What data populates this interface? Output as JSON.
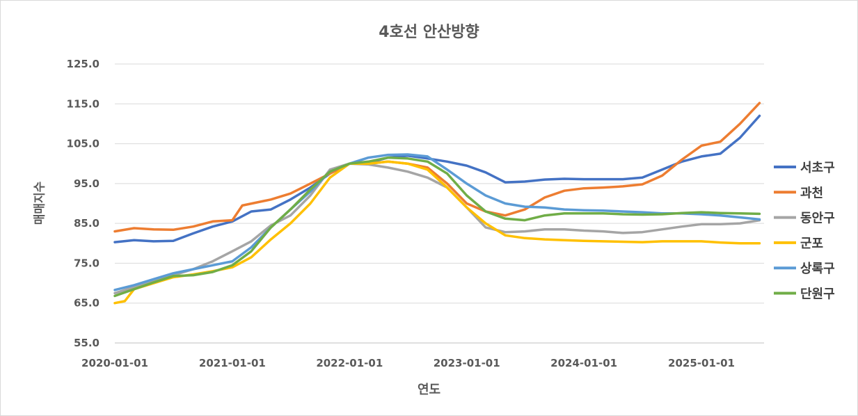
{
  "chart_data": {
    "type": "line",
    "title": "4호선 안산방향",
    "xlabel": "연도",
    "ylabel": "매매지수",
    "ylim": [
      55,
      125
    ],
    "yticks": [
      "55.0",
      "65.0",
      "75.0",
      "85.0",
      "95.0",
      "105.0",
      "115.0",
      "125.0"
    ],
    "ytick_values": [
      55,
      65,
      75,
      85,
      95,
      105,
      115,
      125
    ],
    "xticks": [
      "2020-01-01",
      "2021-01-01",
      "2022-01-01",
      "2023-01-01",
      "2024-01-01",
      "2025-01-01"
    ],
    "grid": true,
    "legend_position": "right",
    "series": [
      {
        "name": "서초구",
        "color": "#4472C4",
        "points": [
          [
            "2020-01-01",
            80.3
          ],
          [
            "2020-03-01",
            80.8
          ],
          [
            "2020-05-01",
            80.5
          ],
          [
            "2020-07-01",
            80.6
          ],
          [
            "2020-09-01",
            82.5
          ],
          [
            "2020-11-01",
            84.2
          ],
          [
            "2021-01-01",
            85.5
          ],
          [
            "2021-03-01",
            88.0
          ],
          [
            "2021-05-01",
            88.5
          ],
          [
            "2021-07-01",
            91.0
          ],
          [
            "2021-09-01",
            94.0
          ],
          [
            "2021-11-01",
            97.5
          ],
          [
            "2022-01-01",
            100.0
          ],
          [
            "2022-03-01",
            100.2
          ],
          [
            "2022-05-01",
            101.5
          ],
          [
            "2022-07-01",
            102.0
          ],
          [
            "2022-09-01",
            101.3
          ],
          [
            "2022-11-01",
            100.5
          ],
          [
            "2023-01-01",
            99.5
          ],
          [
            "2023-03-01",
            97.8
          ],
          [
            "2023-05-01",
            95.3
          ],
          [
            "2023-07-01",
            95.5
          ],
          [
            "2023-09-01",
            96.0
          ],
          [
            "2023-11-01",
            96.2
          ],
          [
            "2024-01-01",
            96.1
          ],
          [
            "2024-03-01",
            96.1
          ],
          [
            "2024-05-01",
            96.1
          ],
          [
            "2024-07-01",
            96.5
          ],
          [
            "2024-09-01",
            98.5
          ],
          [
            "2024-11-01",
            100.5
          ],
          [
            "2025-01-01",
            101.8
          ],
          [
            "2025-03-01",
            102.5
          ],
          [
            "2025-05-01",
            106.5
          ],
          [
            "2025-07-01",
            112.0
          ]
        ]
      },
      {
        "name": "과천",
        "color": "#ED7D31",
        "points": [
          [
            "2020-01-01",
            83.0
          ],
          [
            "2020-03-01",
            83.8
          ],
          [
            "2020-05-01",
            83.5
          ],
          [
            "2020-07-01",
            83.4
          ],
          [
            "2020-09-01",
            84.2
          ],
          [
            "2020-11-01",
            85.5
          ],
          [
            "2021-01-01",
            85.8
          ],
          [
            "2021-02-01",
            89.5
          ],
          [
            "2021-05-01",
            91.0
          ],
          [
            "2021-07-01",
            92.5
          ],
          [
            "2021-09-01",
            95.0
          ],
          [
            "2021-11-01",
            97.5
          ],
          [
            "2022-01-01",
            100.0
          ],
          [
            "2022-03-01",
            100.0
          ],
          [
            "2022-05-01",
            100.5
          ],
          [
            "2022-07-01",
            100.0
          ],
          [
            "2022-09-01",
            99.0
          ],
          [
            "2022-11-01",
            95.0
          ],
          [
            "2023-01-01",
            90.0
          ],
          [
            "2023-03-01",
            88.0
          ],
          [
            "2023-05-01",
            87.0
          ],
          [
            "2023-07-01",
            88.5
          ],
          [
            "2023-09-01",
            91.5
          ],
          [
            "2023-11-01",
            93.2
          ],
          [
            "2024-01-01",
            93.8
          ],
          [
            "2024-03-01",
            94.0
          ],
          [
            "2024-05-01",
            94.3
          ],
          [
            "2024-07-01",
            94.8
          ],
          [
            "2024-09-01",
            97.0
          ],
          [
            "2024-11-01",
            101.0
          ],
          [
            "2025-01-01",
            104.5
          ],
          [
            "2025-03-01",
            105.5
          ],
          [
            "2025-05-01",
            110.0
          ],
          [
            "2025-07-01",
            115.2
          ]
        ]
      },
      {
        "name": "동안구",
        "color": "#A5A5A5",
        "points": [
          [
            "2020-01-01",
            67.5
          ],
          [
            "2020-03-01",
            69.0
          ],
          [
            "2020-05-01",
            70.5
          ],
          [
            "2020-07-01",
            72.0
          ],
          [
            "2020-09-01",
            73.5
          ],
          [
            "2020-11-01",
            75.5
          ],
          [
            "2021-01-01",
            78.0
          ],
          [
            "2021-03-01",
            80.5
          ],
          [
            "2021-05-01",
            84.5
          ],
          [
            "2021-07-01",
            87.0
          ],
          [
            "2021-09-01",
            92.0
          ],
          [
            "2021-11-01",
            98.5
          ],
          [
            "2022-01-01",
            100.0
          ],
          [
            "2022-03-01",
            99.8
          ],
          [
            "2022-05-01",
            99.0
          ],
          [
            "2022-07-01",
            98.0
          ],
          [
            "2022-09-01",
            96.5
          ],
          [
            "2022-11-01",
            94.0
          ],
          [
            "2023-01-01",
            89.0
          ],
          [
            "2023-03-01",
            84.0
          ],
          [
            "2023-05-01",
            82.8
          ],
          [
            "2023-07-01",
            83.0
          ],
          [
            "2023-09-01",
            83.5
          ],
          [
            "2023-11-01",
            83.5
          ],
          [
            "2024-01-01",
            83.2
          ],
          [
            "2024-03-01",
            83.0
          ],
          [
            "2024-05-01",
            82.6
          ],
          [
            "2024-07-01",
            82.8
          ],
          [
            "2024-09-01",
            83.5
          ],
          [
            "2024-11-01",
            84.2
          ],
          [
            "2025-01-01",
            84.8
          ],
          [
            "2025-03-01",
            84.8
          ],
          [
            "2025-05-01",
            85.0
          ],
          [
            "2025-07-01",
            85.8
          ]
        ]
      },
      {
        "name": "군포",
        "color": "#FFC000",
        "points": [
          [
            "2020-01-01",
            65.0
          ],
          [
            "2020-02-01",
            65.5
          ],
          [
            "2020-03-01",
            68.5
          ],
          [
            "2020-05-01",
            70.0
          ],
          [
            "2020-07-01",
            71.5
          ],
          [
            "2020-09-01",
            72.2
          ],
          [
            "2020-11-01",
            73.0
          ],
          [
            "2021-01-01",
            74.0
          ],
          [
            "2021-03-01",
            76.5
          ],
          [
            "2021-05-01",
            81.0
          ],
          [
            "2021-07-01",
            85.0
          ],
          [
            "2021-09-01",
            90.0
          ],
          [
            "2021-11-01",
            96.5
          ],
          [
            "2022-01-01",
            100.0
          ],
          [
            "2022-03-01",
            100.0
          ],
          [
            "2022-05-01",
            100.5
          ],
          [
            "2022-07-01",
            100.0
          ],
          [
            "2022-09-01",
            98.5
          ],
          [
            "2022-11-01",
            94.0
          ],
          [
            "2023-01-01",
            89.0
          ],
          [
            "2023-03-01",
            85.0
          ],
          [
            "2023-05-01",
            82.0
          ],
          [
            "2023-07-01",
            81.3
          ],
          [
            "2023-09-01",
            81.0
          ],
          [
            "2023-11-01",
            80.8
          ],
          [
            "2024-01-01",
            80.6
          ],
          [
            "2024-03-01",
            80.5
          ],
          [
            "2024-05-01",
            80.4
          ],
          [
            "2024-07-01",
            80.3
          ],
          [
            "2024-09-01",
            80.5
          ],
          [
            "2024-11-01",
            80.5
          ],
          [
            "2025-01-01",
            80.5
          ],
          [
            "2025-03-01",
            80.2
          ],
          [
            "2025-05-01",
            80.0
          ],
          [
            "2025-07-01",
            80.0
          ]
        ]
      },
      {
        "name": "상록구",
        "color": "#5B9BD5",
        "points": [
          [
            "2020-01-01",
            68.3
          ],
          [
            "2020-03-01",
            69.5
          ],
          [
            "2020-05-01",
            71.0
          ],
          [
            "2020-07-01",
            72.5
          ],
          [
            "2020-09-01",
            73.5
          ],
          [
            "2020-11-01",
            74.5
          ],
          [
            "2021-01-01",
            75.5
          ],
          [
            "2021-03-01",
            79.0
          ],
          [
            "2021-05-01",
            84.0
          ],
          [
            "2021-07-01",
            88.5
          ],
          [
            "2021-09-01",
            93.0
          ],
          [
            "2021-11-01",
            98.0
          ],
          [
            "2022-01-01",
            100.0
          ],
          [
            "2022-03-01",
            101.5
          ],
          [
            "2022-05-01",
            102.2
          ],
          [
            "2022-07-01",
            102.3
          ],
          [
            "2022-09-01",
            101.8
          ],
          [
            "2022-11-01",
            98.5
          ],
          [
            "2023-01-01",
            95.0
          ],
          [
            "2023-03-01",
            92.0
          ],
          [
            "2023-05-01",
            90.0
          ],
          [
            "2023-07-01",
            89.2
          ],
          [
            "2023-09-01",
            89.0
          ],
          [
            "2023-11-01",
            88.5
          ],
          [
            "2024-01-01",
            88.3
          ],
          [
            "2024-03-01",
            88.2
          ],
          [
            "2024-05-01",
            88.0
          ],
          [
            "2024-07-01",
            87.8
          ],
          [
            "2024-09-01",
            87.5
          ],
          [
            "2024-11-01",
            87.5
          ],
          [
            "2025-01-01",
            87.3
          ],
          [
            "2025-03-01",
            87.0
          ],
          [
            "2025-05-01",
            86.5
          ],
          [
            "2025-07-01",
            86.0
          ]
        ]
      },
      {
        "name": "단원구",
        "color": "#70AD47",
        "points": [
          [
            "2020-01-01",
            66.8
          ],
          [
            "2020-03-01",
            68.5
          ],
          [
            "2020-05-01",
            70.2
          ],
          [
            "2020-07-01",
            71.8
          ],
          [
            "2020-09-01",
            72.0
          ],
          [
            "2020-11-01",
            72.8
          ],
          [
            "2021-01-01",
            74.5
          ],
          [
            "2021-03-01",
            78.0
          ],
          [
            "2021-05-01",
            84.0
          ],
          [
            "2021-07-01",
            88.5
          ],
          [
            "2021-09-01",
            93.5
          ],
          [
            "2021-11-01",
            98.0
          ],
          [
            "2022-01-01",
            100.0
          ],
          [
            "2022-03-01",
            100.5
          ],
          [
            "2022-05-01",
            101.5
          ],
          [
            "2022-07-01",
            101.3
          ],
          [
            "2022-09-01",
            100.5
          ],
          [
            "2022-11-01",
            97.5
          ],
          [
            "2023-01-01",
            92.0
          ],
          [
            "2023-03-01",
            88.0
          ],
          [
            "2023-05-01",
            86.2
          ],
          [
            "2023-07-01",
            85.8
          ],
          [
            "2023-09-01",
            87.0
          ],
          [
            "2023-11-01",
            87.5
          ],
          [
            "2024-01-01",
            87.5
          ],
          [
            "2024-03-01",
            87.5
          ],
          [
            "2024-05-01",
            87.3
          ],
          [
            "2024-07-01",
            87.2
          ],
          [
            "2024-09-01",
            87.3
          ],
          [
            "2024-11-01",
            87.6
          ],
          [
            "2025-01-01",
            87.8
          ],
          [
            "2025-03-01",
            87.6
          ],
          [
            "2025-05-01",
            87.5
          ],
          [
            "2025-07-01",
            87.4
          ]
        ]
      }
    ]
  }
}
